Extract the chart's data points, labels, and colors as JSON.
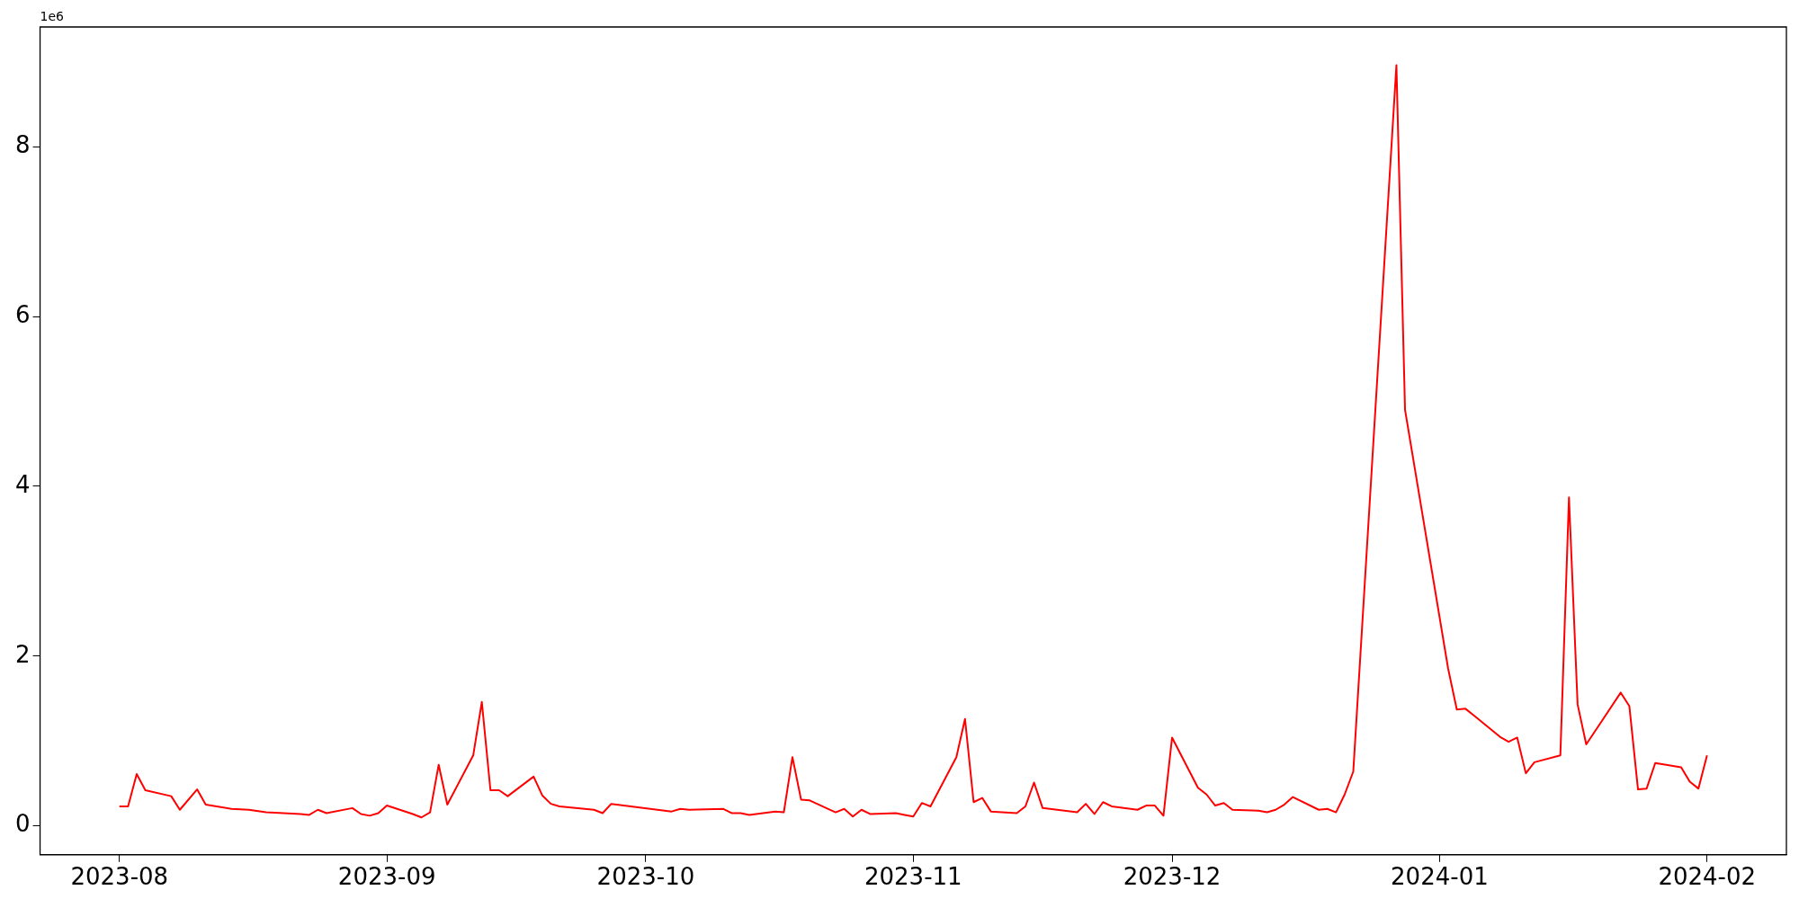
{
  "chart_data": {
    "type": "line",
    "x": [
      "2023-08-01",
      "2023-08-02",
      "2023-08-03",
      "2023-08-04",
      "2023-08-07",
      "2023-08-08",
      "2023-08-10",
      "2023-08-11",
      "2023-08-14",
      "2023-08-16",
      "2023-08-18",
      "2023-08-22",
      "2023-08-23",
      "2023-08-24",
      "2023-08-25",
      "2023-08-28",
      "2023-08-29",
      "2023-08-30",
      "2023-08-31",
      "2023-09-01",
      "2023-09-04",
      "2023-09-05",
      "2023-09-06",
      "2023-09-07",
      "2023-09-08",
      "2023-09-11",
      "2023-09-12",
      "2023-09-13",
      "2023-09-14",
      "2023-09-15",
      "2023-09-18",
      "2023-09-19",
      "2023-09-20",
      "2023-09-21",
      "2023-09-25",
      "2023-09-26",
      "2023-09-27",
      "2023-10-04",
      "2023-10-05",
      "2023-10-06",
      "2023-10-10",
      "2023-10-11",
      "2023-10-12",
      "2023-10-13",
      "2023-10-16",
      "2023-10-17",
      "2023-10-18",
      "2023-10-19",
      "2023-10-20",
      "2023-10-23",
      "2023-10-24",
      "2023-10-25",
      "2023-10-26",
      "2023-10-27",
      "2023-10-30",
      "2023-10-31",
      "2023-11-01",
      "2023-11-02",
      "2023-11-03",
      "2023-11-06",
      "2023-11-07",
      "2023-11-08",
      "2023-11-09",
      "2023-11-10",
      "2023-11-13",
      "2023-11-14",
      "2023-11-15",
      "2023-11-16",
      "2023-11-20",
      "2023-11-21",
      "2023-11-22",
      "2023-11-23",
      "2023-11-24",
      "2023-11-27",
      "2023-11-28",
      "2023-11-29",
      "2023-11-30",
      "2023-12-01",
      "2023-12-04",
      "2023-12-05",
      "2023-12-06",
      "2023-12-07",
      "2023-12-08",
      "2023-12-11",
      "2023-12-12",
      "2023-12-13",
      "2023-12-14",
      "2023-12-15",
      "2023-12-18",
      "2023-12-19",
      "2023-12-20",
      "2023-12-21",
      "2023-12-22",
      "2023-12-27",
      "2023-12-28",
      "2024-01-02",
      "2024-01-03",
      "2024-01-04",
      "2024-01-05",
      "2024-01-08",
      "2024-01-09",
      "2024-01-10",
      "2024-01-11",
      "2024-01-12",
      "2024-01-15",
      "2024-01-16",
      "2024-01-17",
      "2024-01-18",
      "2024-01-22",
      "2024-01-23",
      "2024-01-24",
      "2024-01-25",
      "2024-01-26",
      "2024-01-29",
      "2024-01-30",
      "2024-01-31",
      "2024-02-01"
    ],
    "series": [
      {
        "color": "#ff0000",
        "values": [
          0.23,
          0.23,
          0.61,
          0.42,
          0.35,
          0.19,
          0.43,
          0.25,
          0.2,
          0.19,
          0.16,
          0.14,
          0.13,
          0.19,
          0.15,
          0.21,
          0.14,
          0.12,
          0.15,
          0.24,
          0.14,
          0.1,
          0.16,
          0.72,
          0.25,
          0.83,
          1.46,
          0.42,
          0.42,
          0.35,
          0.58,
          0.36,
          0.26,
          0.23,
          0.19,
          0.15,
          0.26,
          0.17,
          0.2,
          0.19,
          0.2,
          0.15,
          0.15,
          0.13,
          0.17,
          0.16,
          0.81,
          0.31,
          0.3,
          0.16,
          0.2,
          0.11,
          0.19,
          0.14,
          0.15,
          0.13,
          0.11,
          0.27,
          0.23,
          0.81,
          1.26,
          0.28,
          0.33,
          0.17,
          0.15,
          0.23,
          0.51,
          0.21,
          0.16,
          0.26,
          0.14,
          0.28,
          0.23,
          0.19,
          0.24,
          0.24,
          0.12,
          1.04,
          0.45,
          0.37,
          0.24,
          0.27,
          0.19,
          0.18,
          0.16,
          0.19,
          0.25,
          0.34,
          0.19,
          0.2,
          0.16,
          0.37,
          0.64,
          8.96,
          4.9,
          1.85,
          1.37,
          1.38,
          1.3,
          1.05,
          0.99,
          1.04,
          0.62,
          0.75,
          0.83,
          3.87,
          1.43,
          0.96,
          1.57,
          1.41,
          0.43,
          0.44,
          0.74,
          0.69,
          0.52,
          0.44,
          0.83
        ]
      }
    ],
    "xlim": [
      "2023-07-22T19:12",
      "2024-02-10T04:48"
    ],
    "xticks": [
      "2023-08",
      "2023-09",
      "2023-10",
      "2023-11",
      "2023-12",
      "2024-01",
      "2024-02"
    ],
    "ylim": [
      -0.34,
      9.41
    ],
    "yticks": [
      0,
      2,
      4,
      6,
      8
    ],
    "annotations": [
      "1e6"
    ],
    "grid": false,
    "legend": false,
    "marker": "none",
    "line_style": "solid"
  }
}
